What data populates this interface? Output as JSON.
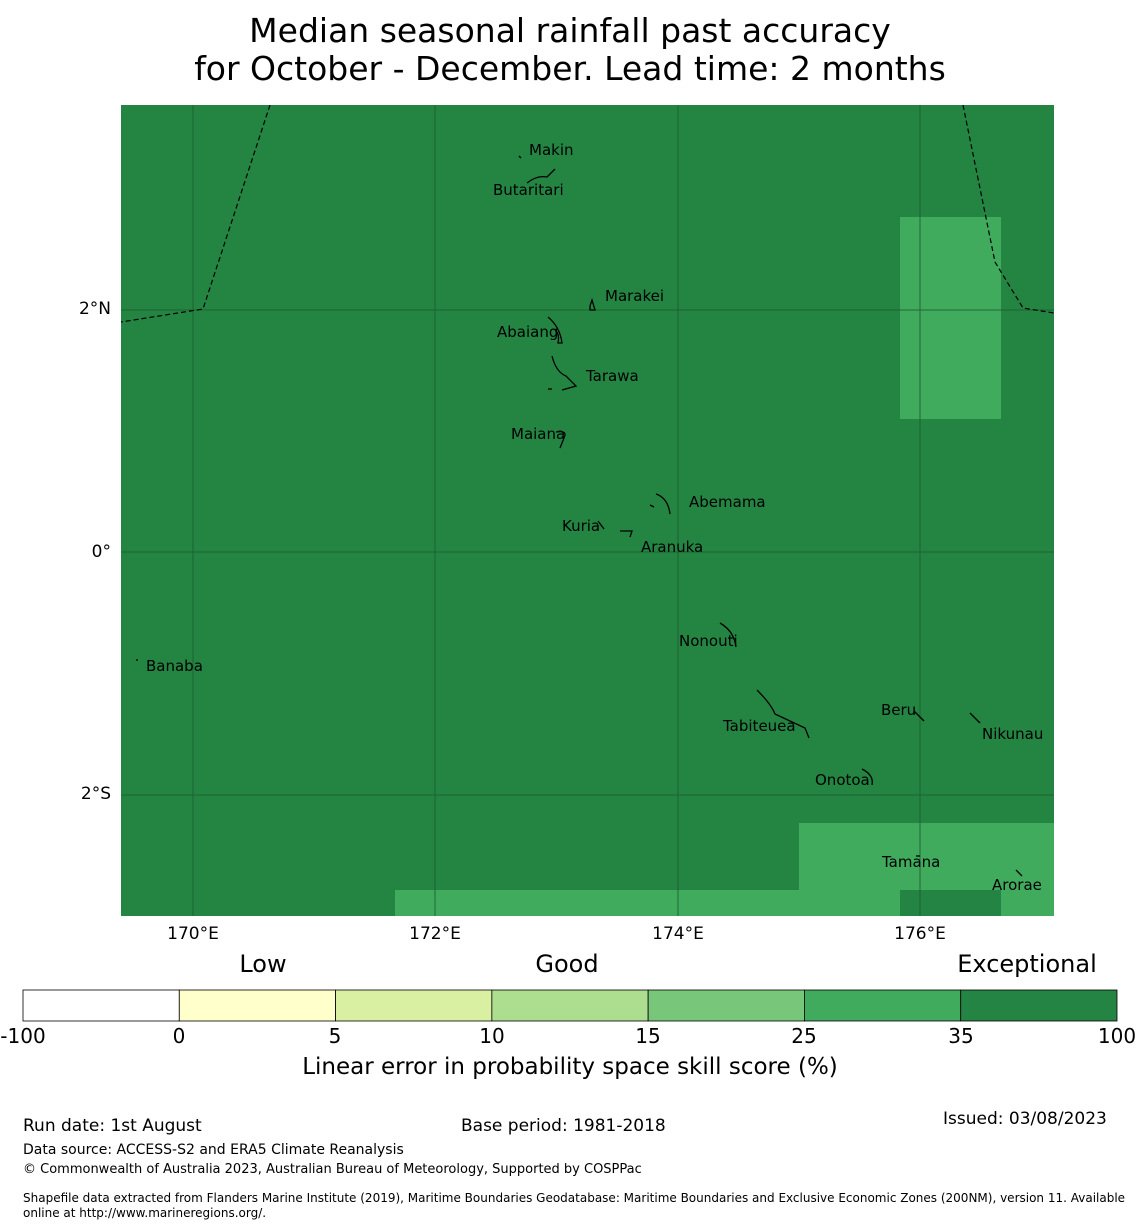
{
  "title": {
    "line1": "Median seasonal rainfall past accuracy",
    "line2": "for October - December. Lead time: 2 months"
  },
  "map": {
    "background_color": "#248543",
    "lat_labels": [
      "2°N",
      "0°",
      "2°S"
    ],
    "lon_labels": [
      "170°E",
      "172°E",
      "174°E",
      "176°E"
    ],
    "islands": [
      "Makin",
      "Butaritari",
      "Marakei",
      "Abaiang",
      "Tarawa",
      "Maiana",
      "Abemama",
      "Kuria",
      "Aranuka",
      "Nonouti",
      "Banaba",
      "Beru",
      "Tabiteuea",
      "Nikunau",
      "Onotoa",
      "Tamana",
      "Arorae"
    ]
  },
  "colorbar": {
    "category_labels": [
      "Low",
      "Good",
      "Exceptional"
    ],
    "ticks": [
      "-100",
      "0",
      "5",
      "10",
      "15",
      "25",
      "35",
      "100"
    ],
    "colors": [
      "#ffffff",
      "#ffffcc",
      "#d9f0a3",
      "#addd8e",
      "#78c679",
      "#41ab5d",
      "#238443"
    ],
    "title": "Linear error in probability space skill score (%)"
  },
  "footer": {
    "run_date": "Run date: 1st August",
    "base_period": "Base period: 1981-2018",
    "issued": "Issued: 03/08/2023",
    "data_source": "Data source: ACCESS-S2 and ERA5 Climate Reanalysis",
    "copyright": "© Commonwealth of Australia 2023, Australian Bureau of Meteorology, Supported by COSPPac",
    "shapefile_line1": "Shapefile data extracted from Flanders Marine Institute (2019), Maritime Boundaries Geodatabase: Maritime Boundaries and Exclusive Economic Zones (200NM), version 11. Available",
    "shapefile_line2": "online at http://www.marineregions.org/."
  }
}
